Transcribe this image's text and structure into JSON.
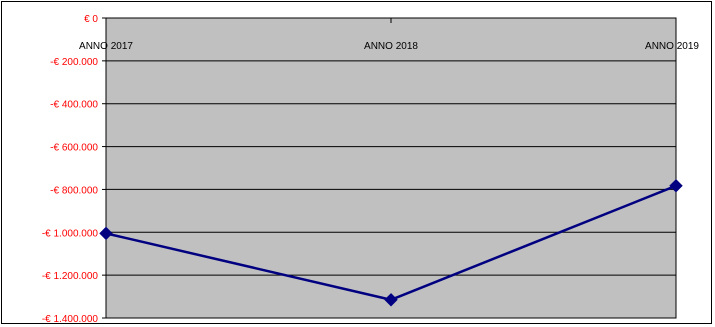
{
  "chart_data": {
    "type": "line",
    "title": "",
    "xlabel": "",
    "ylabel": "",
    "categories": [
      "ANNO 2017",
      "ANNO 2018",
      "ANNO 2019"
    ],
    "series": [
      {
        "values": [
          -1005000,
          -1315000,
          -783000
        ]
      }
    ],
    "ylim": [
      -1400000,
      0
    ],
    "yticks": [
      0,
      -200000,
      -400000,
      -600000,
      -800000,
      -1000000,
      -1200000,
      -1400000
    ],
    "ytick_labels": [
      "€ 0",
      "-€ 200.000",
      "-€ 400.000",
      "-€ 600.000",
      "-€ 800.000",
      "-€ 1.000.000",
      "-€ 1.200.000",
      "-€ 1.400.000"
    ],
    "grid": true,
    "legend": "none",
    "colors": {
      "plot_background": "#c0c0c0",
      "line": "#000080",
      "marker": "#000080",
      "gridline": "#000000",
      "ytick_text": "#ff0000",
      "xtick_text": "#000000"
    }
  }
}
